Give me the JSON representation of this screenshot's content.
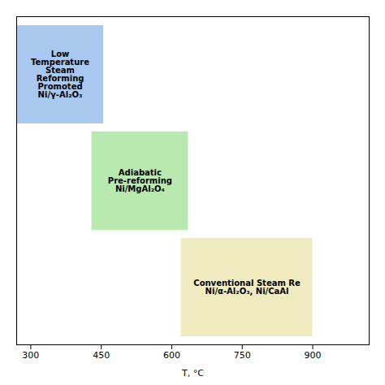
{
  "chart_data": {
    "type": "range",
    "xlabel": "T, °C",
    "categories": [
      [
        "Low",
        "Temperature",
        "Steam",
        "Reforming",
        "Promoted",
        "Ni/γ-Al₂O₃"
      ],
      [
        "Adiabatic",
        "Pre-reforming",
        "Ni/MgAl₂O₄"
      ],
      [
        "Conventional Steam Re",
        "Ni/α-Al₂O₃, Ni/CaAl"
      ]
    ],
    "values": [
      [
        270,
        455
      ],
      [
        430,
        635
      ],
      [
        620,
        900
      ]
    ],
    "colors": [
      "#a8c8f0",
      "#b8eab0",
      "#f0ecc0"
    ],
    "xlim": [
      270,
      1020
    ],
    "xticks": [
      300,
      450,
      600,
      750,
      900
    ],
    "tick_labels": "x",
    "grid": false
  }
}
